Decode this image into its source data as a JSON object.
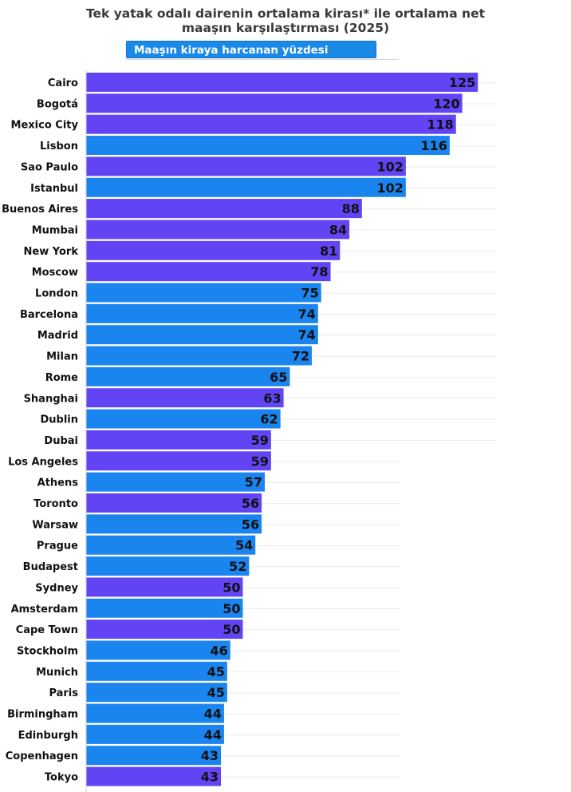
{
  "header": {
    "title_line1": "Tek yatak odalı dairenin ortalama kirası* ile ortalama net",
    "title_line2": "maaşın karşılaştırması (2025)",
    "badge": "Maaşın kiraya harcanan yüzdesi"
  },
  "colors": {
    "purple": "#6244f5",
    "blue": "#1b85ef",
    "label": "#111111",
    "value": "#111111",
    "grid": "#ebebeb"
  },
  "chart_data": {
    "type": "bar",
    "orientation": "horizontal",
    "title": "Tek yatak odalı dairenin ortalama kirası* ile ortalama net maaşın karşılaştırması (2025)",
    "subtitle": "Maaşın kiraya harcanan yüzdesi",
    "xlim": [
      0,
      125
    ],
    "grid": true,
    "data_labels": true,
    "categories": [
      "Cairo",
      "Bogotá",
      "Mexico City",
      "Lisbon",
      "Sao Paulo",
      "Istanbul",
      "Buenos Aires",
      "Mumbai",
      "New York",
      "Moscow",
      "London",
      "Barcelona",
      "Madrid",
      "Milan",
      "Rome",
      "Shanghai",
      "Dublin",
      "Dubai",
      "Los Angeles",
      "Athens",
      "Toronto",
      "Warsaw",
      "Prague",
      "Budapest",
      "Sydney",
      "Amsterdam",
      "Cape Town",
      "Stockholm",
      "Munich",
      "Paris",
      "Birmingham",
      "Edinburgh",
      "Copenhagen",
      "Tokyo"
    ],
    "values": [
      125,
      120,
      118,
      116,
      102,
      102,
      88,
      84,
      81,
      78,
      75,
      74,
      74,
      72,
      65,
      63,
      62,
      59,
      59,
      57,
      56,
      56,
      54,
      52,
      50,
      50,
      50,
      46,
      45,
      45,
      44,
      44,
      43,
      43
    ],
    "bar_colors": [
      "purple",
      "purple",
      "purple",
      "blue",
      "purple",
      "blue",
      "purple",
      "purple",
      "purple",
      "purple",
      "blue",
      "blue",
      "blue",
      "blue",
      "blue",
      "purple",
      "blue",
      "purple",
      "purple",
      "blue",
      "purple",
      "blue",
      "blue",
      "blue",
      "purple",
      "blue",
      "purple",
      "blue",
      "blue",
      "blue",
      "blue",
      "blue",
      "blue",
      "purple"
    ]
  }
}
